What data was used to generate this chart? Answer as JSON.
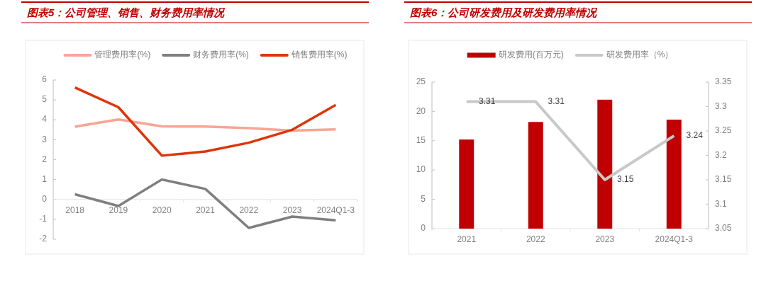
{
  "chart_data": [
    {
      "type": "line",
      "title": "图表5：公司管理、销售、财务费用率情况",
      "categories": [
        "2018",
        "2019",
        "2020",
        "2021",
        "2022",
        "2023",
        "2024Q1-3"
      ],
      "series": [
        {
          "name": "管理费用率(%)",
          "color": "#f7a595",
          "values": [
            3.65,
            4.02,
            3.67,
            3.66,
            3.58,
            3.46,
            3.52
          ]
        },
        {
          "name": "财务费用率(%)",
          "color": "#7f7f7f",
          "values": [
            0.26,
            -0.33,
            1.0,
            0.53,
            -1.43,
            -0.86,
            -1.05
          ]
        },
        {
          "name": "销售费用率(%)",
          "color": "#dd3508",
          "values": [
            5.62,
            4.63,
            2.2,
            2.41,
            2.85,
            3.5,
            4.75
          ]
        }
      ],
      "ylim": [
        -2,
        6
      ],
      "yticks": [
        -2,
        -1,
        0,
        1,
        2,
        3,
        4,
        5,
        6
      ],
      "legend": "top"
    },
    {
      "type": "bar",
      "title": "图表6：公司研发费用及研发费用率情况",
      "categories": [
        "2021",
        "2022",
        "2023",
        "2024Q1-3"
      ],
      "series": [
        {
          "name": "研发费用(百万元)",
          "color": "#c00000",
          "values": [
            15.2,
            18.2,
            22.0,
            18.6
          ]
        },
        {
          "name": "研发费用率（%）",
          "type": "line",
          "axis": "y2",
          "color": "#c8c8c8",
          "values": [
            3.31,
            3.31,
            3.15,
            3.24
          ],
          "value_labels": [
            "3.31",
            "3.31",
            "3.15",
            "3.24"
          ]
        }
      ],
      "ylim": [
        0,
        25
      ],
      "yticks": [
        0,
        5,
        10,
        15,
        20,
        25
      ],
      "y2lim": [
        3.05,
        3.35
      ],
      "y2ticks": [
        3.05,
        3.1,
        3.15,
        3.2,
        3.25,
        3.3,
        3.35
      ],
      "legend": "top"
    }
  ]
}
